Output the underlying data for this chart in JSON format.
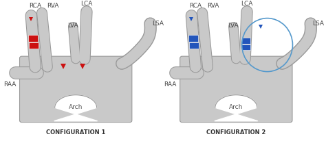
{
  "bg_color": "#ffffff",
  "vessel_color": "#c9c9c9",
  "vessel_edge": "#999999",
  "vessel_dark": "#aaaaaa",
  "red_marker": "#cc1111",
  "blue_marker": "#2255bb",
  "blue_circle": "#5599cc",
  "label_color": "#444444",
  "config1_title": "CONFIGURATION 1",
  "config2_title": "CONFIGURATION 2",
  "arch_text": "Arch",
  "figsize": [
    4.74,
    2.06
  ],
  "dpi": 100
}
